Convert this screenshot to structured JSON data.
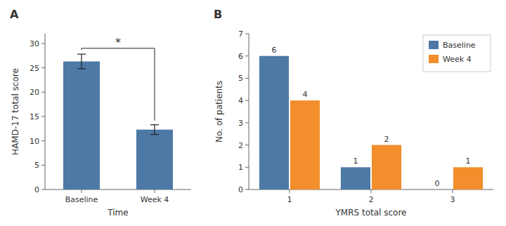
{
  "chart_data": [
    {
      "type": "bar",
      "title": "A",
      "categories": [
        "Baseline",
        "Week 4"
      ],
      "values": [
        26.3,
        12.3
      ],
      "errors": [
        1.5,
        1.0
      ],
      "xlabel": "Time",
      "ylabel": "HAMD-17 total score",
      "ylim": [
        0,
        32
      ],
      "yticks": [
        0,
        5,
        10,
        15,
        20,
        25,
        30
      ],
      "grid": false,
      "annotations": [
        {
          "text": "*",
          "y": 29.0
        }
      ]
    },
    {
      "type": "bar",
      "title": "B",
      "categories": [
        "1",
        "2",
        "3"
      ],
      "series": [
        {
          "name": "Baseline",
          "values": [
            6,
            1,
            0
          ]
        },
        {
          "name": "Week 4",
          "values": [
            4,
            2,
            1
          ]
        }
      ],
      "xlabel": "YMRS total score",
      "ylabel": "No. of patients",
      "ylim": [
        0,
        7
      ],
      "yticks": [
        0,
        1,
        2,
        3,
        4,
        5,
        6,
        7
      ],
      "grid": false,
      "legend": "upper right",
      "data_labels": true
    }
  ]
}
